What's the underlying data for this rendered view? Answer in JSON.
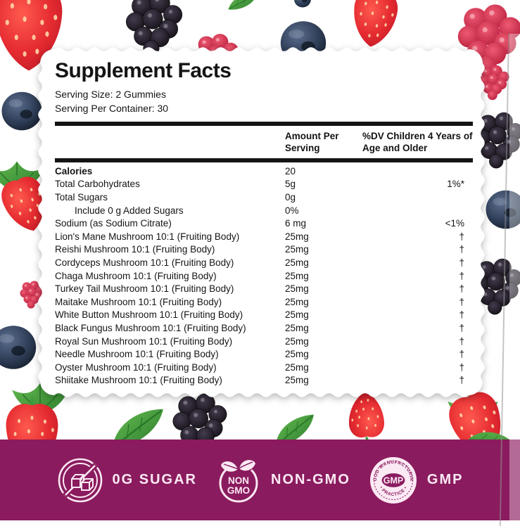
{
  "label": {
    "title": "Supplement Facts",
    "serving_lines": [
      "Serving Size: 2 Gummies",
      "Serving Per Container: 30"
    ],
    "header": {
      "amount": "Amount Per Serving",
      "dv": "%DV Children 4 Years of Age and Older"
    },
    "rows": [
      {
        "name": "Calories",
        "amount": "20",
        "dv": "",
        "bold": true
      },
      {
        "name": "Total Carbohydrates",
        "amount": "5g",
        "dv": "1%*"
      },
      {
        "name": "Total Sugars",
        "amount": "0g",
        "dv": ""
      },
      {
        "name": "Include 0 g Added Sugars",
        "amount": "0%",
        "dv": "",
        "indent": true
      },
      {
        "name": "Sodium (as Sodium Citrate)",
        "amount": "6 mg",
        "dv": "<1%"
      },
      {
        "name": "Lion's Mane Mushroom 10:1 (Fruiting Body)",
        "amount": "25mg",
        "dv": "†"
      },
      {
        "name": "Reishi Mushroom 10:1 (Fruiting Body)",
        "amount": "25mg",
        "dv": "†"
      },
      {
        "name": "Cordyceps Mushroom 10:1 (Fruiting Body)",
        "amount": "25mg",
        "dv": "†"
      },
      {
        "name": "Chaga Mushroom 10:1 (Fruiting Body)",
        "amount": "25mg",
        "dv": "†"
      },
      {
        "name": "Turkey Tail Mushroom 10:1 (Fruiting Body)",
        "amount": "25mg",
        "dv": "†"
      },
      {
        "name": "Maitake Mushroom 10:1 (Fruiting Body)",
        "amount": "25mg",
        "dv": "†"
      },
      {
        "name": "White Button Mushroom 10:1 (Fruiting Body)",
        "amount": "25mg",
        "dv": "†"
      },
      {
        "name": "Black Fungus Mushroom 10:1 (Fruiting Body)",
        "amount": "25mg",
        "dv": "†"
      },
      {
        "name": "Royal Sun Mushroom 10:1 (Fruiting Body)",
        "amount": "25mg",
        "dv": "†"
      },
      {
        "name": "Needle Mushroom 10:1 (Fruiting Body)",
        "amount": "25mg",
        "dv": "†"
      },
      {
        "name": "Oyster Mushroom 10:1 (Fruiting Body)",
        "amount": "25mg",
        "dv": "†"
      },
      {
        "name": "Shiitake Mushroom 10:1 (Fruiting Body)",
        "amount": "25mg",
        "dv": "†"
      }
    ]
  },
  "banner": {
    "background": "#8a1b5e",
    "text_color": "#fbe9f4",
    "badges": [
      {
        "label": "0G SUGAR",
        "icon": "no-sugar-icon"
      },
      {
        "label": "NON-GMO",
        "icon": "non-gmo-icon",
        "icon_lines": [
          "NON",
          "GMO"
        ]
      },
      {
        "label": "GMP",
        "icon": "gmp-seal-icon",
        "seal_center": "GMP",
        "seal_arc_top": "GOOD MANUFACTURING",
        "seal_arc_bottom": "• PRACTICE •"
      }
    ]
  }
}
